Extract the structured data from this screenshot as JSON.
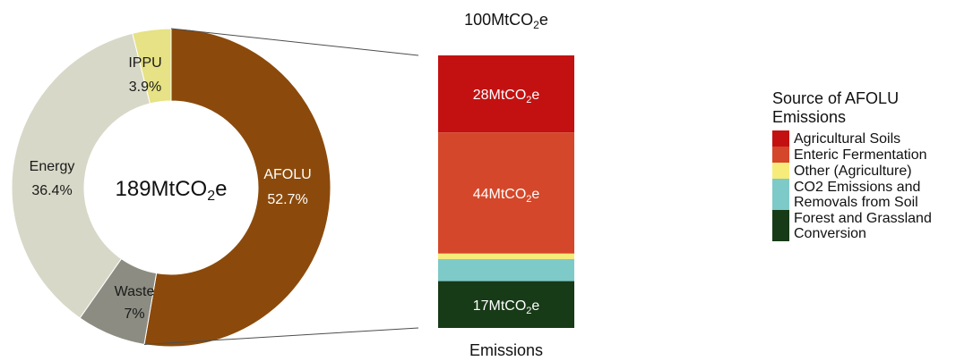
{
  "colors": {
    "AFOLU": "#8b4a0b",
    "Waste": "#8c8c82",
    "Energy": "#d8d8c8",
    "IPPU": "#e6e285",
    "Agricultural Soils": "#c31111",
    "Enteric Fermentation": "#d5472a",
    "Other (Agriculture)": "#f7eb7a",
    "CO2 Emissions and Removals from Soil": "#7ecac8",
    "Forest and Grassland Conversion": "#173a17",
    "connector": "#4d4d4d"
  },
  "chart_data": [
    {
      "type": "pie",
      "style": "donut",
      "center_label": {
        "number": "189MtCO",
        "sub": "2",
        "suffix": "e"
      },
      "slices": [
        {
          "label": "AFOLU",
          "pct_label": "52.7%",
          "value": 52.7
        },
        {
          "label": "Waste",
          "pct_label": "7%",
          "value": 7.0
        },
        {
          "label": "Energy",
          "pct_label": "36.4%",
          "value": 36.4
        },
        {
          "label": "IPPU",
          "pct_label": "3.9%",
          "value": 3.9
        }
      ]
    },
    {
      "type": "bar",
      "stacked": true,
      "title": {
        "number": "100MtCO",
        "sub": "2",
        "suffix": "e"
      },
      "xlabel": "Emissions",
      "categories": [
        "Emissions"
      ],
      "series": [
        {
          "name": "Agricultural Soils",
          "values": [
            28
          ],
          "label": {
            "number": "28MtCO",
            "sub": "2",
            "suffix": "e"
          }
        },
        {
          "name": "Enteric Fermentation",
          "values": [
            44
          ],
          "label": {
            "number": "44MtCO",
            "sub": "2",
            "suffix": "e"
          }
        },
        {
          "name": "Other (Agriculture)",
          "values": [
            2
          ],
          "label": null
        },
        {
          "name": "CO2 Emissions and Removals from Soil",
          "values": [
            8
          ],
          "label": null
        },
        {
          "name": "Forest and Grassland Conversion",
          "values": [
            17
          ],
          "label": {
            "number": "17MtCO",
            "sub": "2",
            "suffix": "e"
          }
        }
      ]
    }
  ],
  "legend": {
    "title": "Source of AFOLU\nEmissions",
    "items": [
      {
        "label": "Agricultural Soils",
        "lines": 1
      },
      {
        "label": "Enteric Fermentation",
        "lines": 1
      },
      {
        "label": "Other (Agriculture)",
        "lines": 1
      },
      {
        "label": "CO2 Emissions and\nRemovals from Soil",
        "lines": 2
      },
      {
        "label": "Forest and Grassland\nConversion",
        "lines": 2
      }
    ]
  }
}
